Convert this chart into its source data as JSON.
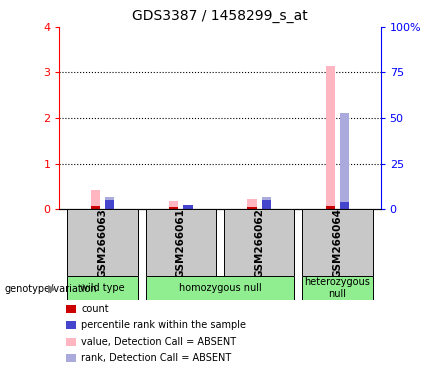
{
  "title": "GDS3387 / 1458299_s_at",
  "samples": [
    "GSM266063",
    "GSM266061",
    "GSM266062",
    "GSM266064"
  ],
  "bar_positions": [
    0,
    1,
    2,
    3
  ],
  "value_absent": [
    0.42,
    0.18,
    0.22,
    3.14
  ],
  "rank_absent": [
    0.28,
    0.1,
    0.27,
    2.12
  ],
  "count_values": [
    0.08,
    0.06,
    0.06,
    0.07
  ],
  "rank_values": [
    0.2,
    0.09,
    0.2,
    0.15
  ],
  "ylim_left": [
    0,
    4
  ],
  "ylim_right": [
    0,
    100
  ],
  "yticks_left": [
    0,
    1,
    2,
    3,
    4
  ],
  "yticks_right": [
    0,
    25,
    50,
    75,
    100
  ],
  "ytick_labels_right": [
    "0",
    "25",
    "50",
    "75",
    "100%"
  ],
  "color_count": "#cc0000",
  "color_rank": "#4444cc",
  "color_value_absent": "#ffb6c1",
  "color_rank_absent": "#aaaadd",
  "bar_width": 0.12,
  "bg_sample_box": "#c8c8c8",
  "bg_genotype_box": "#90EE90",
  "legend_items": [
    {
      "color": "#cc0000",
      "label": "count"
    },
    {
      "color": "#4444cc",
      "label": "percentile rank within the sample"
    },
    {
      "color": "#ffb6c1",
      "label": "value, Detection Call = ABSENT"
    },
    {
      "color": "#aaaadd",
      "label": "rank, Detection Call = ABSENT"
    }
  ],
  "group_spans": [
    {
      "xstart": -0.45,
      "xend": 0.45,
      "label": "wild type"
    },
    {
      "xstart": 0.55,
      "xend": 2.45,
      "label": "homozygous null"
    },
    {
      "xstart": 2.55,
      "xend": 3.45,
      "label": "heterozygous\nnull"
    }
  ]
}
